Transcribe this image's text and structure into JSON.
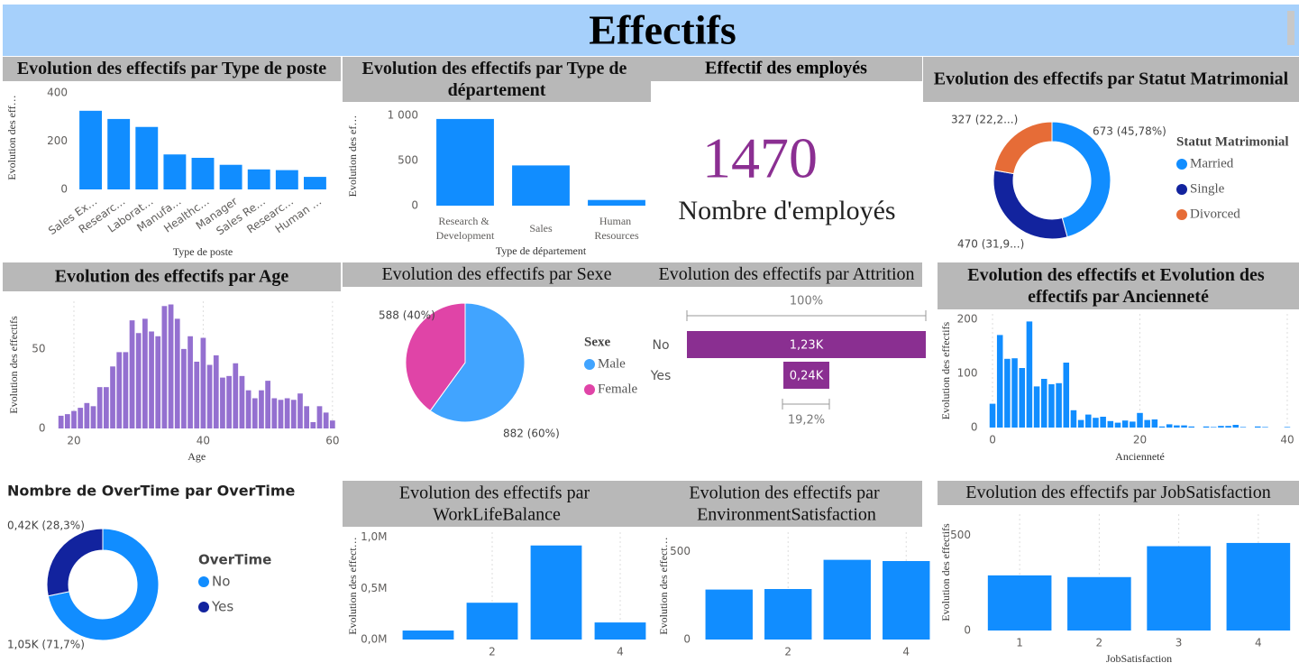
{
  "page_title": "Effectifs",
  "kpi": {
    "title": "Effectif des employés",
    "value": 1470,
    "label": "Nombre d'employés"
  },
  "chart_data": [
    {
      "type": "bar",
      "title": "Evolution des effectifs par Type de poste",
      "x_label": "Type de poste",
      "y_label": "Evolution des eff…",
      "categories": [
        "Sales Ex…",
        "Researc…",
        "Laborat…",
        "Manufa…",
        "Healthc…",
        "Manager",
        "Sales Re…",
        "Researc…",
        "Human …"
      ],
      "values": [
        326,
        292,
        259,
        145,
        131,
        102,
        83,
        80,
        52
      ],
      "color": "#118DFF",
      "ylim": [
        0,
        430
      ],
      "yticks": [
        0,
        200,
        400
      ]
    },
    {
      "type": "bar",
      "title": "Evolution des effectifs par Type de département",
      "x_label": "Type de département",
      "y_label": "Evolution des ef…",
      "categories": [
        "Research & Development",
        "Sales",
        "Human Resources"
      ],
      "values": [
        961,
        446,
        63
      ],
      "color": "#118DFF",
      "ylim": [
        0,
        1100
      ],
      "yticks": [
        0,
        500,
        {
          "value": 1000,
          "label": "1 000"
        }
      ]
    },
    {
      "type": "donut",
      "title": "Evolution des effectifs par Statut Matrimonial",
      "legend_title": "Statut Matrimonial",
      "categories": [
        "Married",
        "Single",
        "Divorced"
      ],
      "values": [
        673,
        470,
        327
      ],
      "value_labels": [
        "673 (45,78%)",
        "470 (31,9...)",
        "327 (22,2...)"
      ],
      "colors": [
        "#118DFF",
        "#12239E",
        "#E66C37"
      ]
    },
    {
      "type": "bar",
      "title": "Evolution des effectifs par Age",
      "x_label": "Age",
      "y_label": "Evolution des effectifs",
      "x": [
        18,
        19,
        20,
        21,
        22,
        23,
        24,
        25,
        26,
        27,
        28,
        29,
        30,
        31,
        32,
        33,
        34,
        35,
        36,
        37,
        38,
        39,
        40,
        41,
        42,
        43,
        44,
        45,
        46,
        47,
        48,
        49,
        50,
        51,
        52,
        53,
        54,
        55,
        56,
        57,
        58,
        59,
        60
      ],
      "values": [
        8,
        9,
        11,
        13,
        16,
        14,
        26,
        26,
        39,
        48,
        48,
        68,
        60,
        69,
        61,
        58,
        77,
        78,
        69,
        50,
        58,
        42,
        57,
        40,
        46,
        32,
        33,
        41,
        33,
        24,
        19,
        24,
        30,
        19,
        18,
        19,
        18,
        22,
        14,
        4,
        14,
        10,
        5
      ],
      "color": "#9470D0",
      "xlim": [
        17,
        61
      ],
      "xticks": [
        20,
        40,
        60
      ],
      "ylim": [
        0,
        80
      ],
      "yticks": [
        0,
        50
      ],
      "grid": true
    },
    {
      "type": "pie",
      "title": "Evolution des effectifs par Sexe",
      "legend_title": "Sexe",
      "categories": [
        "Male",
        "Female"
      ],
      "values": [
        882,
        588
      ],
      "value_labels": [
        "882 (60%)",
        "588 (40%)"
      ],
      "colors": [
        "#41A4FF",
        "#E044A7"
      ]
    },
    {
      "type": "funnel",
      "title": "Evolution des effectifs par Attrition",
      "categories": [
        "No",
        "Yes"
      ],
      "values": [
        1233,
        237
      ],
      "value_labels": [
        "1,23K",
        "0,24K"
      ],
      "annotations": [
        "100%",
        "19,2%"
      ],
      "color": "#8A2F91"
    },
    {
      "type": "bar",
      "title": "Evolution des effectifs et Evolution des effectifs par Ancienneté",
      "x_label": "Ancienneté",
      "y_label": "Evolution des effectifs",
      "x": [
        0,
        1,
        2,
        3,
        4,
        5,
        6,
        7,
        8,
        9,
        10,
        11,
        12,
        13,
        14,
        15,
        16,
        17,
        18,
        19,
        20,
        21,
        22,
        23,
        24,
        25,
        26,
        27,
        29,
        30,
        31,
        32,
        33,
        34,
        36,
        37,
        40
      ],
      "values": [
        44,
        171,
        127,
        128,
        110,
        196,
        76,
        90,
        80,
        82,
        120,
        32,
        14,
        24,
        18,
        20,
        12,
        9,
        13,
        11,
        27,
        14,
        15,
        2,
        6,
        4,
        4,
        2,
        2,
        1,
        3,
        3,
        5,
        1,
        2,
        1,
        1
      ],
      "color": "#118DFF",
      "xlim": [
        -0.8,
        40.8
      ],
      "xticks": [
        0,
        20,
        40
      ],
      "ylim": [
        0,
        210
      ],
      "yticks": [
        0,
        100,
        200
      ],
      "grid": true
    },
    {
      "type": "donut",
      "title": "Nombre de OverTime par OverTime",
      "legend_title": "OverTime",
      "categories": [
        "No",
        "Yes"
      ],
      "values": [
        1054,
        416
      ],
      "value_labels": [
        "1,05K (71,7%)",
        "0,42K (28,3%)"
      ],
      "colors": [
        "#118DFF",
        "#12239E"
      ]
    },
    {
      "type": "bar",
      "title": "Evolution des effectifs par WorkLifeBalance",
      "y_label": "Evolution des effect…",
      "x": [
        1,
        2,
        3,
        4
      ],
      "values": [
        88000,
        360000,
        920000,
        167000
      ],
      "color": "#118DFF",
      "xlim": [
        0.5,
        4.5
      ],
      "xticks": [
        2,
        4
      ],
      "ylim": [
        0,
        1050000
      ],
      "yticks": [
        {
          "value": 0,
          "label": "0,0M"
        },
        {
          "value": 500000,
          "label": "0,5M"
        },
        {
          "value": 1000000,
          "label": "1,0M"
        }
      ],
      "grid": true
    },
    {
      "type": "bar",
      "title": "Evolution des effectifs par EnvironmentSatisfaction",
      "y_label": "Evolution des effect…",
      "x": [
        1,
        2,
        3,
        4
      ],
      "values": [
        284,
        287,
        453,
        446
      ],
      "color": "#118DFF",
      "xlim": [
        0.5,
        4.5
      ],
      "xticks": [
        2,
        4
      ],
      "ylim": [
        0,
        610
      ],
      "yticks": [
        0,
        500
      ],
      "grid": true
    },
    {
      "type": "bar",
      "title": "Evolution des effectifs par JobSatisfaction",
      "x_label": "JobSatisfaction",
      "y_label": "Evolution des effectifs",
      "x": [
        1,
        2,
        3,
        4
      ],
      "values": [
        289,
        280,
        442,
        459
      ],
      "color": "#118DFF",
      "xlim": [
        0.5,
        4.5
      ],
      "xticks": [
        1,
        2,
        3,
        4
      ],
      "ylim": [
        0,
        610
      ],
      "yticks": [
        0,
        500
      ],
      "grid": true
    }
  ]
}
